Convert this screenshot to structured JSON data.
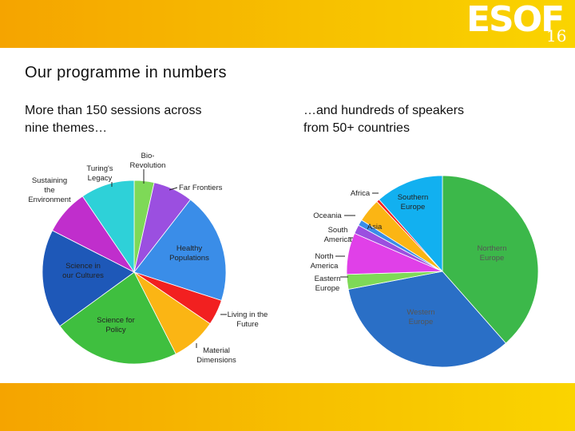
{
  "header": {
    "logo": "ESOF",
    "logo_year": "16"
  },
  "title": "Our programme in numbers",
  "left_subtitle": "More than 150 sessions across\nnine themes…",
  "right_subtitle": "…and hundreds of speakers\nfrom 50+ countries",
  "chart_data": [
    {
      "type": "pie",
      "title": "More than 150 sessions across nine themes…",
      "categories": [
        "Bio-Revolution",
        "Far Frontiers",
        "Healthy Populations",
        "Living in the Future",
        "Material Dimensions",
        "Science for Policy",
        "Science in our Cultures",
        "Sustaining the Environment",
        "Turing's Legacy"
      ],
      "labels": [
        "Bio-\nRevolution",
        "Far Frontiers",
        "Healthy\nPopulations",
        "Living in the\nFuture",
        "Material\nDimensions",
        "Science for\nPolicy",
        "Science in\nour Cultures",
        "Sustaining\nthe\nEnvironment",
        "Turing's\nLegacy"
      ],
      "values": [
        3.5,
        7.0,
        19.5,
        4.5,
        8.0,
        22.5,
        17.5,
        8.0,
        9.5
      ],
      "colors": [
        "#7ed957",
        "#9b4fe0",
        "#3a8de8",
        "#f22020",
        "#fbb514",
        "#3fbf3f",
        "#1e58b8",
        "#c02ecc",
        "#2ed1d8"
      ]
    },
    {
      "type": "pie",
      "title": "…and hundreds of speakers from 50+ countries",
      "categories": [
        "Northern Europe",
        "Western Europe",
        "Eastern Europe",
        "North America",
        "South America",
        "Oceania",
        "Asia",
        "Africa",
        "Southern Europe"
      ],
      "labels": [
        "Northern\nEurope",
        "Western\nEurope",
        "Eastern\nEurope",
        "North\nAmerica",
        "South\nAmerica",
        "Oceania",
        "Asia",
        "Africa",
        "Southern\nEurope"
      ],
      "values": [
        38.5,
        33.5,
        2.5,
        7.0,
        1.5,
        1.0,
        4.0,
        0.5,
        11.5
      ],
      "colors": [
        "#3cb84a",
        "#2a6fc6",
        "#7ed957",
        "#e040e8",
        "#9b4fe0",
        "#3a8de8",
        "#fbb514",
        "#f22020",
        "#12b0f0"
      ]
    }
  ]
}
